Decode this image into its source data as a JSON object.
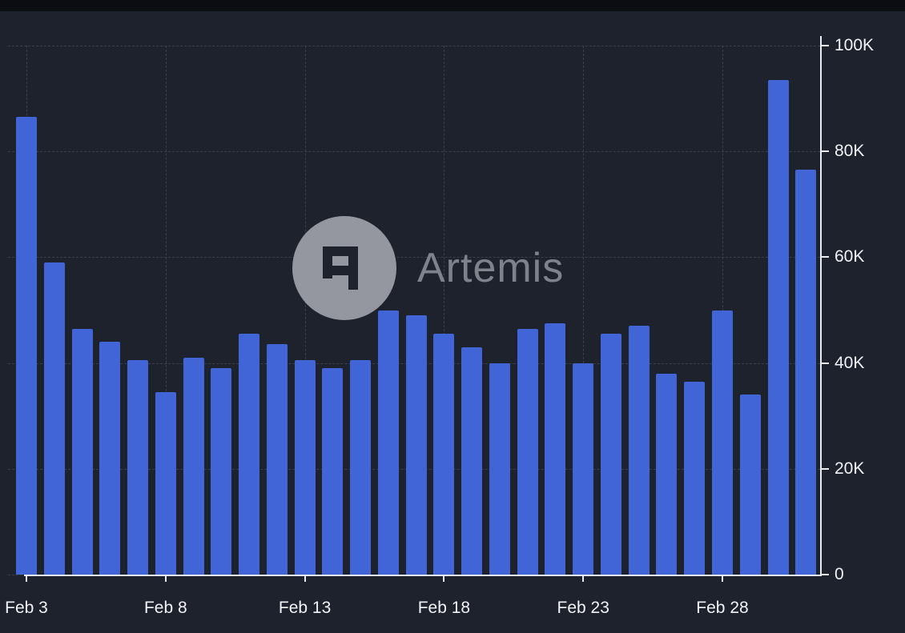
{
  "watermark": {
    "text": "Artemis"
  },
  "colors": {
    "background_outer": "#0b0d12",
    "background_panel": "#1e222d",
    "bar": "#4165d6",
    "gridline": "#3a3f4c",
    "axis": "#e9ebef",
    "label_text": "#f1f2f5",
    "watermark_gray": "#7e828b",
    "watermark_circle": "#94979f"
  },
  "chart_data": {
    "type": "bar",
    "title": "",
    "xlabel": "",
    "ylabel": "",
    "bar_color": "#4165d6",
    "grid": "dashed",
    "legend": "none",
    "y_axis_position": "right",
    "ylim": [
      0,
      100000
    ],
    "x": [
      "Feb 3",
      "Feb 4",
      "Feb 5",
      "Feb 6",
      "Feb 7",
      "Feb 8",
      "Feb 9",
      "Feb 10",
      "Feb 11",
      "Feb 12",
      "Feb 13",
      "Feb 14",
      "Feb 15",
      "Feb 16",
      "Feb 17",
      "Feb 18",
      "Feb 19",
      "Feb 20",
      "Feb 21",
      "Feb 22",
      "Feb 23",
      "Feb 24",
      "Feb 25",
      "Feb 26",
      "Feb 27",
      "Feb 28",
      "Mar 1",
      "Mar 2",
      "Mar 3"
    ],
    "values": [
      86500,
      59000,
      46500,
      44000,
      40500,
      34500,
      41000,
      39000,
      45500,
      43500,
      40500,
      39000,
      40500,
      50000,
      49000,
      45500,
      43000,
      40000,
      46500,
      47500,
      40000,
      45500,
      47000,
      38000,
      36500,
      50000,
      34000,
      93500,
      76500
    ],
    "y_ticks": [
      {
        "value": 0,
        "label": "0"
      },
      {
        "value": 20000,
        "label": "20K"
      },
      {
        "value": 40000,
        "label": "40K"
      },
      {
        "value": 60000,
        "label": "60K"
      },
      {
        "value": 80000,
        "label": "80K"
      },
      {
        "value": 100000,
        "label": "100K"
      }
    ],
    "x_ticks": [
      {
        "index": 0,
        "label": "Feb 3"
      },
      {
        "index": 5,
        "label": "Feb 8"
      },
      {
        "index": 10,
        "label": "Feb 13"
      },
      {
        "index": 15,
        "label": "Feb 18"
      },
      {
        "index": 20,
        "label": "Feb 23"
      },
      {
        "index": 25,
        "label": "Feb 28"
      }
    ]
  }
}
